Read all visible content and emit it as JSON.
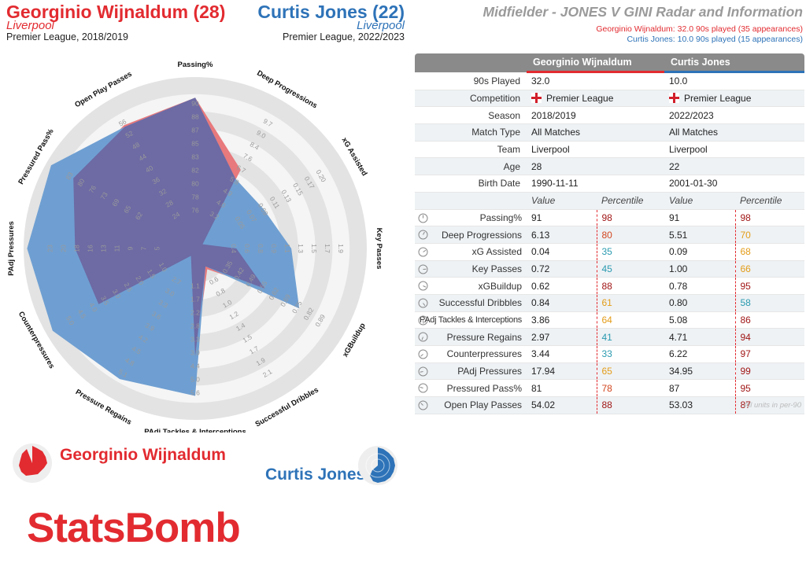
{
  "header": {
    "player1_name": "Georginio Wijnaldum (28)",
    "player1_team": "Liverpool",
    "player1_comp": "Premier League, 2018/2019",
    "player2_name": "Curtis Jones (22)",
    "player2_team": "Liverpool",
    "player2_comp": "Premier League, 2022/2023",
    "title": "Midfielder - JONES V GINI Radar and Information",
    "note_player1": "Georginio Wijnaldum: 32.0 90s played (35 appearances)",
    "note_player2": "Curtis Jones: 10.0 90s played (15 appearances)"
  },
  "colors": {
    "player1": "#e22b30",
    "player2": "#2e73b8",
    "player1_fill": "#e8797c",
    "player2_fill": "#6f9fd2",
    "overlap_fill": "#6d6aa4",
    "ring_dark": "#e3e3e3",
    "ring_light": "#f5f5f5"
  },
  "chart_data": {
    "type": "radar",
    "metrics": [
      {
        "label": "Passing%",
        "ticks": [
          "76",
          "78",
          "80",
          "82",
          "83",
          "85",
          "87",
          "88",
          "90"
        ],
        "player1": 91,
        "player2": 91
      },
      {
        "label": "Deep Progressions",
        "ticks": [
          "3.2",
          "4.0",
          "4.9",
          "5.8",
          "6.7",
          "7.6",
          "8.4",
          "9.0",
          "9.7"
        ],
        "player1": 6.13,
        "player2": 5.51
      },
      {
        "label": "xG Assisted",
        "ticks": [
          "0.05",
          "0.07",
          "0.09",
          "0.11",
          "0.13",
          "0.15",
          "0.17",
          "0.20"
        ],
        "player1": 0.04,
        "player2": 0.09
      },
      {
        "label": "Key Passes",
        "ticks": [
          "0.4",
          "0.6",
          "0.8",
          "0.9",
          "1.1",
          "1.3",
          "1.5",
          "1.7",
          "1.9"
        ],
        "player1": 0.72,
        "player2": 1.0
      },
      {
        "label": "xGBuildup",
        "ticks": [
          "0.35",
          "0.42",
          "0.49",
          "0.55",
          "0.62",
          "0.69",
          "0.75",
          "0.82",
          "0.89"
        ],
        "player1": 0.62,
        "player2": 0.78
      },
      {
        "label": "Successful Dribbles",
        "ticks": [
          "0.6",
          "0.8",
          "1.0",
          "1.2",
          "1.4",
          "1.5",
          "1.7",
          "1.9",
          "2.1"
        ],
        "player1": 0.84,
        "player2": 0.8
      },
      {
        "label": "PAdj Tackles & Interceptions",
        "ticks": [
          "1.1",
          "1.7",
          "2.2",
          "2.8",
          "3.3",
          "3.9",
          "4.4",
          "5.0",
          "5.6"
        ],
        "player1": 3.86,
        "player2": 5.08
      },
      {
        "label": "Pressure Regains",
        "ticks": [
          "2.7",
          "3.0",
          "3.3",
          "3.6",
          "3.9",
          "4.2",
          "4.5",
          "4.8",
          "5.1"
        ],
        "player1": 2.97,
        "player2": 4.71
      },
      {
        "label": "Counterpressures",
        "ticks": [
          "1.0",
          "1.5",
          "2.0",
          "2.5",
          "3.0",
          "3.5",
          "4.0",
          "4.5",
          "5.0"
        ],
        "player1": 3.44,
        "player2": 6.22
      },
      {
        "label": "PAdj Pressures",
        "ticks": [
          "5",
          "7",
          "9",
          "11",
          "13",
          "16",
          "18",
          "20",
          "23"
        ],
        "player1": 17.94,
        "player2": 34.95
      },
      {
        "label": "Pressured Pass%",
        "ticks": [
          "62",
          "65",
          "69",
          "73",
          "76",
          "80",
          "83"
        ],
        "player1": 81,
        "player2": 87
      },
      {
        "label": "Open Play Passes",
        "ticks": [
          "24",
          "28",
          "32",
          "36",
          "40",
          "44",
          "48",
          "52",
          "56"
        ],
        "player1": 54.02,
        "player2": 53.03
      }
    ],
    "series": [
      {
        "name": "Georginio Wijnaldum",
        "radius": [
          0.88,
          0.53,
          0.05,
          0.24,
          0.47,
          0.14,
          0.63,
          0.05,
          0.65,
          0.7,
          0.82,
          0.83
        ]
      },
      {
        "name": "Curtis Jones",
        "radius": [
          0.88,
          0.47,
          0.46,
          0.56,
          0.7,
          0.12,
          0.86,
          0.88,
          0.96,
          0.98,
          0.97,
          0.82
        ]
      }
    ]
  },
  "table": {
    "header_player1": "Georginio Wijnaldum",
    "header_player2": "Curtis Jones",
    "info_rows": [
      {
        "label": "90s Played",
        "p1": "32.0",
        "p2": "10.0",
        "flag": false
      },
      {
        "label": "Competition",
        "p1": "Premier League",
        "p2": "Premier League",
        "flag": true
      },
      {
        "label": "Season",
        "p1": "2018/2019",
        "p2": "2022/2023",
        "flag": false
      },
      {
        "label": "Match Type",
        "p1": "All Matches",
        "p2": "All Matches",
        "flag": false
      },
      {
        "label": "Team",
        "p1": "Liverpool",
        "p2": "Liverpool",
        "flag": false
      },
      {
        "label": "Age",
        "p1": "28",
        "p2": "22",
        "flag": false
      },
      {
        "label": "Birth Date",
        "p1": "1990-11-11",
        "p2": "2001-01-30",
        "flag": false
      }
    ],
    "subheader": {
      "value": "Value",
      "percentile": "Percentile"
    },
    "stat_rows": [
      {
        "label": "Passing%",
        "p1_val": "91",
        "p1_pct": "98",
        "p2_val": "91",
        "p2_pct": "98"
      },
      {
        "label": "Deep Progressions",
        "p1_val": "6.13",
        "p1_pct": "80",
        "p2_val": "5.51",
        "p2_pct": "70"
      },
      {
        "label": "xG Assisted",
        "p1_val": "0.04",
        "p1_pct": "35",
        "p2_val": "0.09",
        "p2_pct": "68"
      },
      {
        "label": "Key Passes",
        "p1_val": "0.72",
        "p1_pct": "45",
        "p2_val": "1.00",
        "p2_pct": "66"
      },
      {
        "label": "xGBuildup",
        "p1_val": "0.62",
        "p1_pct": "88",
        "p2_val": "0.78",
        "p2_pct": "95"
      },
      {
        "label": "Successful Dribbles",
        "p1_val": "0.84",
        "p1_pct": "61",
        "p2_val": "0.80",
        "p2_pct": "58"
      },
      {
        "label": "PAdj Tackles & Interceptions",
        "p1_val": "3.86",
        "p1_pct": "64",
        "p2_val": "5.08",
        "p2_pct": "86"
      },
      {
        "label": "Pressure Regains",
        "p1_val": "2.97",
        "p1_pct": "41",
        "p2_val": "4.71",
        "p2_pct": "94"
      },
      {
        "label": "Counterpressures",
        "p1_val": "3.44",
        "p1_pct": "33",
        "p2_val": "6.22",
        "p2_pct": "97"
      },
      {
        "label": "PAdj Pressures",
        "p1_val": "17.94",
        "p1_pct": "65",
        "p2_val": "34.95",
        "p2_pct": "99"
      },
      {
        "label": "Pressured Pass%",
        "p1_val": "81",
        "p1_pct": "78",
        "p2_val": "87",
        "p2_pct": "95"
      },
      {
        "label": "Open Play Passes",
        "p1_val": "54.02",
        "p1_pct": "88",
        "p2_val": "53.03",
        "p2_pct": "87"
      }
    ],
    "footnote": "All units in per-90"
  },
  "legend": {
    "player1_label": "Georginio Wijnaldum",
    "player2_label": "Curtis Jones"
  },
  "brand": "StatsBomb"
}
